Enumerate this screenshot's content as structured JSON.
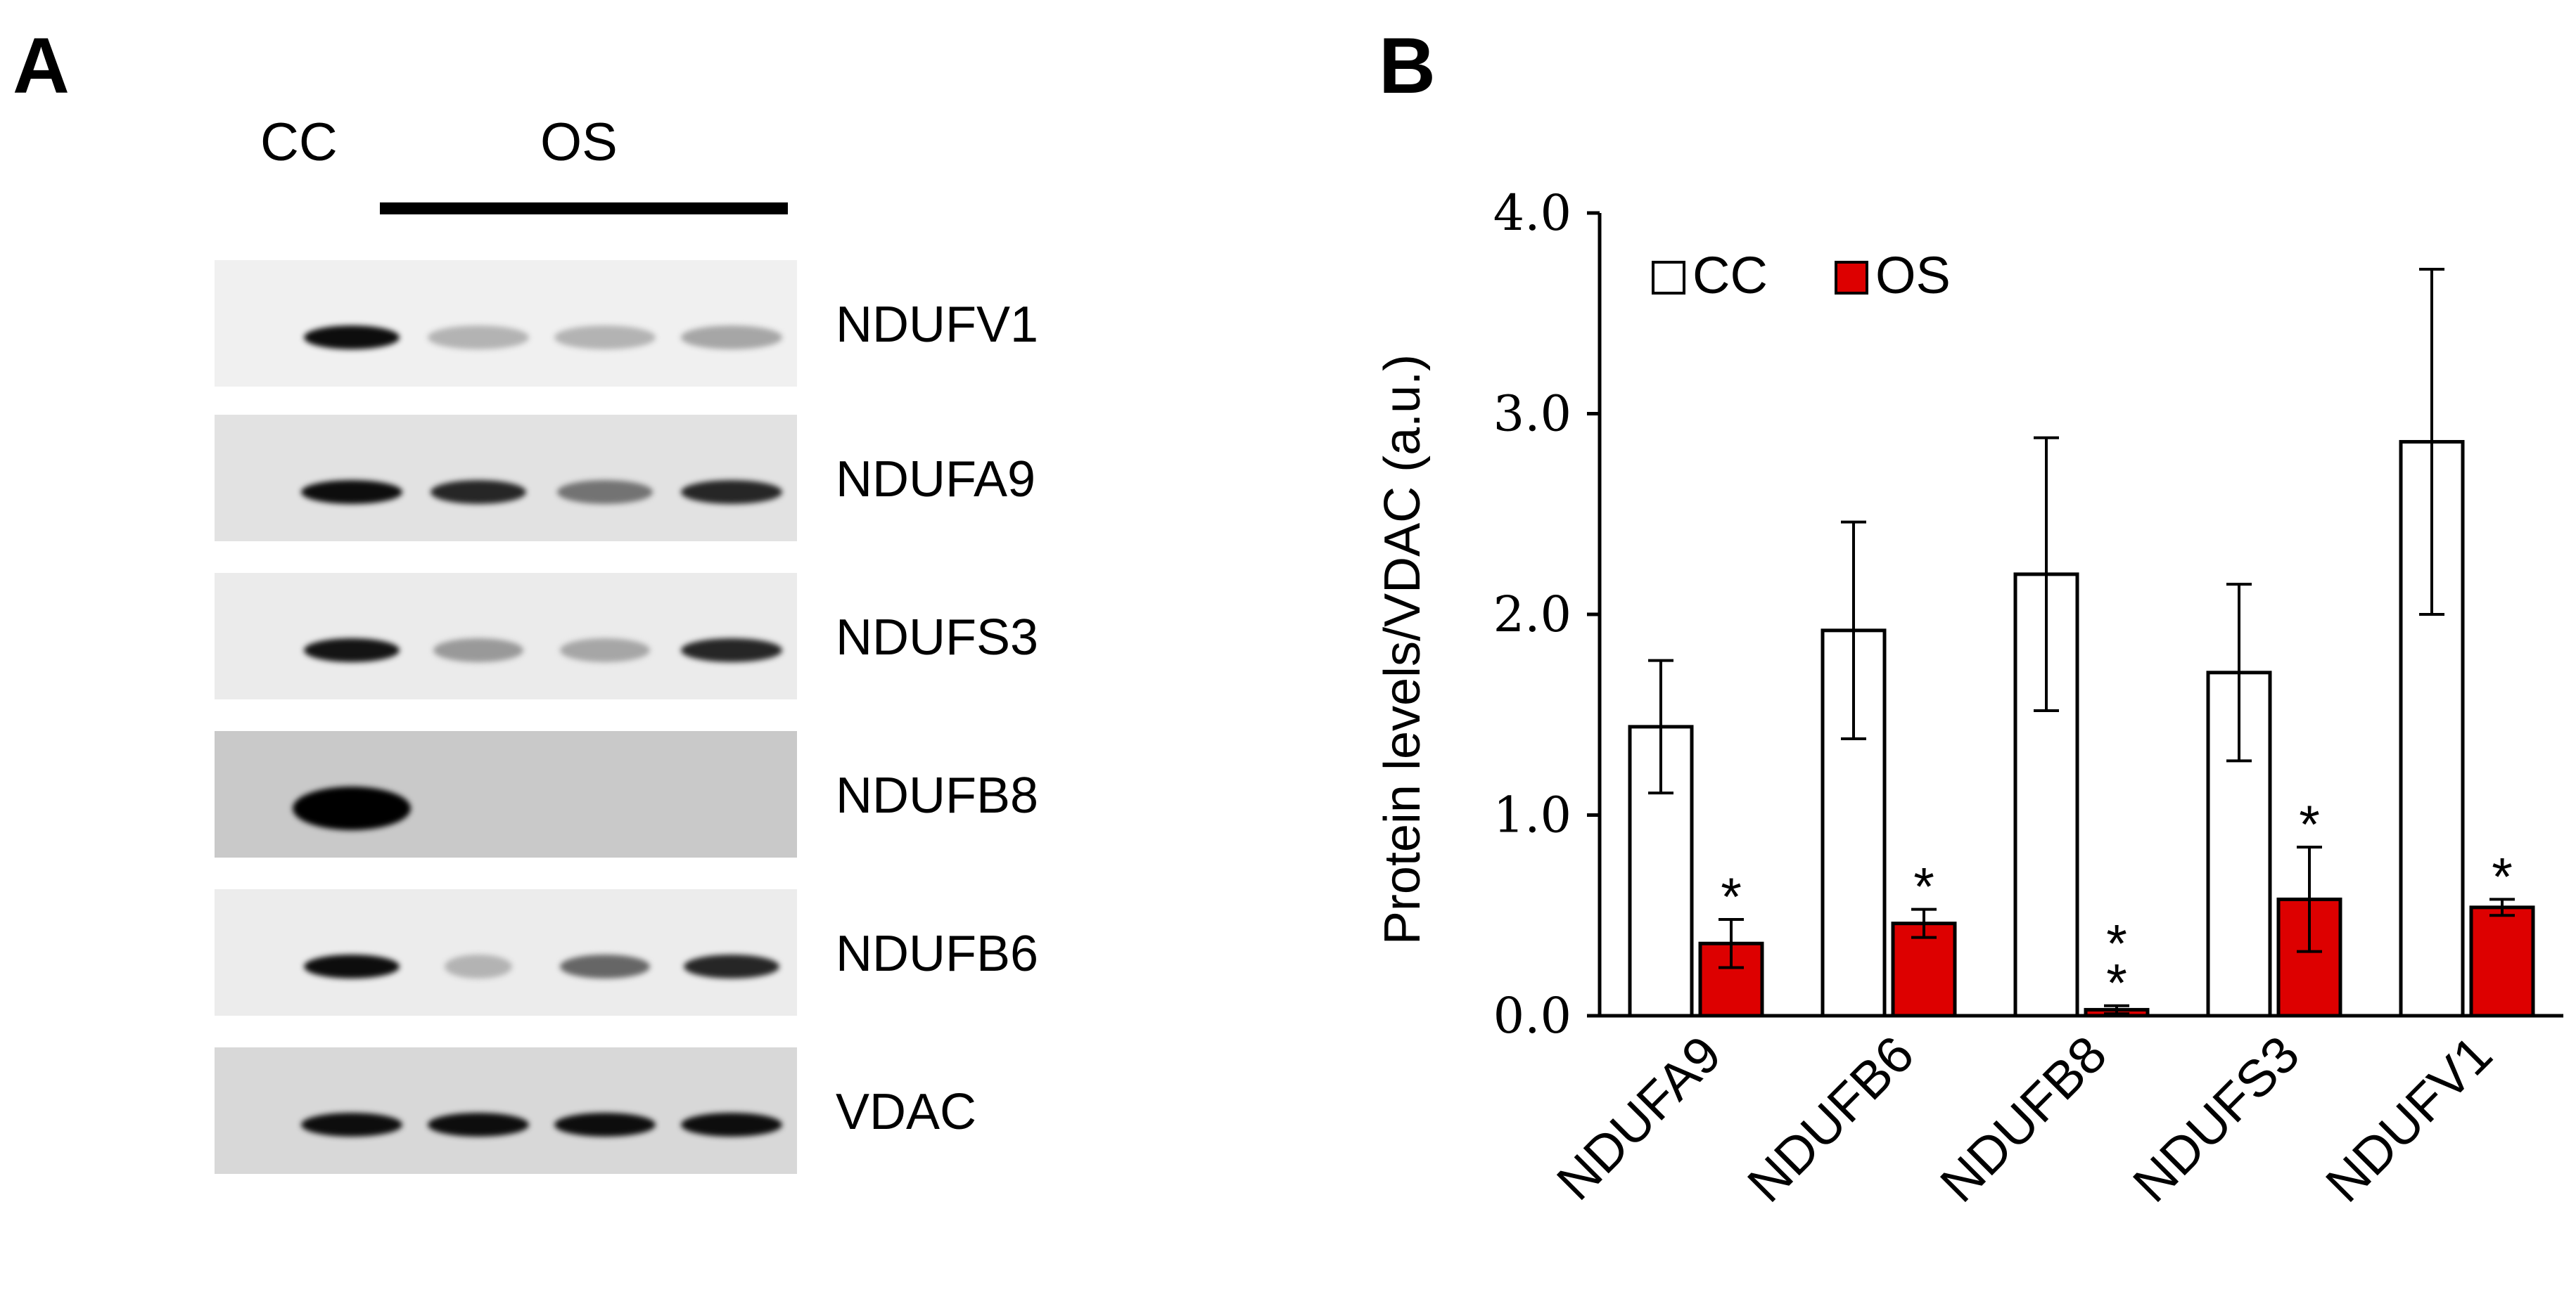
{
  "panel_a": {
    "letter": "A",
    "lane_headers": {
      "control": "CC",
      "treatment": "OS"
    },
    "blots": [
      {
        "label": "NDUFV1",
        "background": "#f0f0f0",
        "bands": [
          {
            "intensity": 0.95,
            "width": 0.85
          },
          {
            "intensity": 0.3,
            "width": 0.9
          },
          {
            "intensity": 0.3,
            "width": 0.9
          },
          {
            "intensity": 0.35,
            "width": 0.9
          }
        ]
      },
      {
        "label": "NDUFA9",
        "background": "#e2e2e2",
        "bands": [
          {
            "intensity": 0.95,
            "width": 0.9
          },
          {
            "intensity": 0.85,
            "width": 0.85
          },
          {
            "intensity": 0.55,
            "width": 0.85
          },
          {
            "intensity": 0.85,
            "width": 0.9
          }
        ]
      },
      {
        "label": "NDUFS3",
        "background": "#ebebeb",
        "bands": [
          {
            "intensity": 0.92,
            "width": 0.85
          },
          {
            "intensity": 0.4,
            "width": 0.8
          },
          {
            "intensity": 0.35,
            "width": 0.8
          },
          {
            "intensity": 0.85,
            "width": 0.9
          }
        ]
      },
      {
        "label": "NDUFB8",
        "background": "#c9c9c9",
        "bands": [
          {
            "intensity": 1.0,
            "width": 1.05
          },
          {
            "intensity": 0.0,
            "width": 0.8
          },
          {
            "intensity": 0.0,
            "width": 0.8
          },
          {
            "intensity": 0.0,
            "width": 0.8
          }
        ]
      },
      {
        "label": "NDUFB6",
        "background": "#ececec",
        "bands": [
          {
            "intensity": 0.95,
            "width": 0.85
          },
          {
            "intensity": 0.3,
            "width": 0.6
          },
          {
            "intensity": 0.6,
            "width": 0.8
          },
          {
            "intensity": 0.85,
            "width": 0.85
          }
        ]
      },
      {
        "label": "VDAC",
        "background": "#d8d8d8",
        "bands": [
          {
            "intensity": 0.95,
            "width": 0.9
          },
          {
            "intensity": 0.95,
            "width": 0.9
          },
          {
            "intensity": 0.95,
            "width": 0.9
          },
          {
            "intensity": 0.95,
            "width": 0.9
          }
        ]
      }
    ]
  },
  "panel_b": {
    "letter": "B"
  },
  "chart_data": {
    "type": "bar",
    "title": "",
    "xlabel": "",
    "ylabel": "Protein levels/VDAC (a.u.)",
    "ylim": [
      0,
      4.0
    ],
    "yticks": [
      "0.0",
      "1.0",
      "2.0",
      "3.0",
      "4.0"
    ],
    "categories": [
      "NDUFA9",
      "NDUFB6",
      "NDUFB8",
      "NDUFS3",
      "NDUFV1"
    ],
    "series": [
      {
        "name": "CC",
        "color": "#ffffff",
        "values": [
          1.44,
          1.92,
          2.2,
          1.71,
          2.86
        ],
        "errors": [
          0.33,
          0.54,
          0.68,
          0.44,
          0.86
        ],
        "annotations": [
          "",
          "",
          "",
          "",
          ""
        ]
      },
      {
        "name": "OS",
        "color": "#dd0000",
        "values": [
          0.36,
          0.46,
          0.03,
          0.58,
          0.54
        ],
        "errors": [
          0.12,
          0.07,
          0.02,
          0.26,
          0.04
        ],
        "annotations": [
          "*",
          "*",
          "**",
          "*",
          "*"
        ]
      }
    ],
    "legend_position": "top-left",
    "grid": false
  }
}
